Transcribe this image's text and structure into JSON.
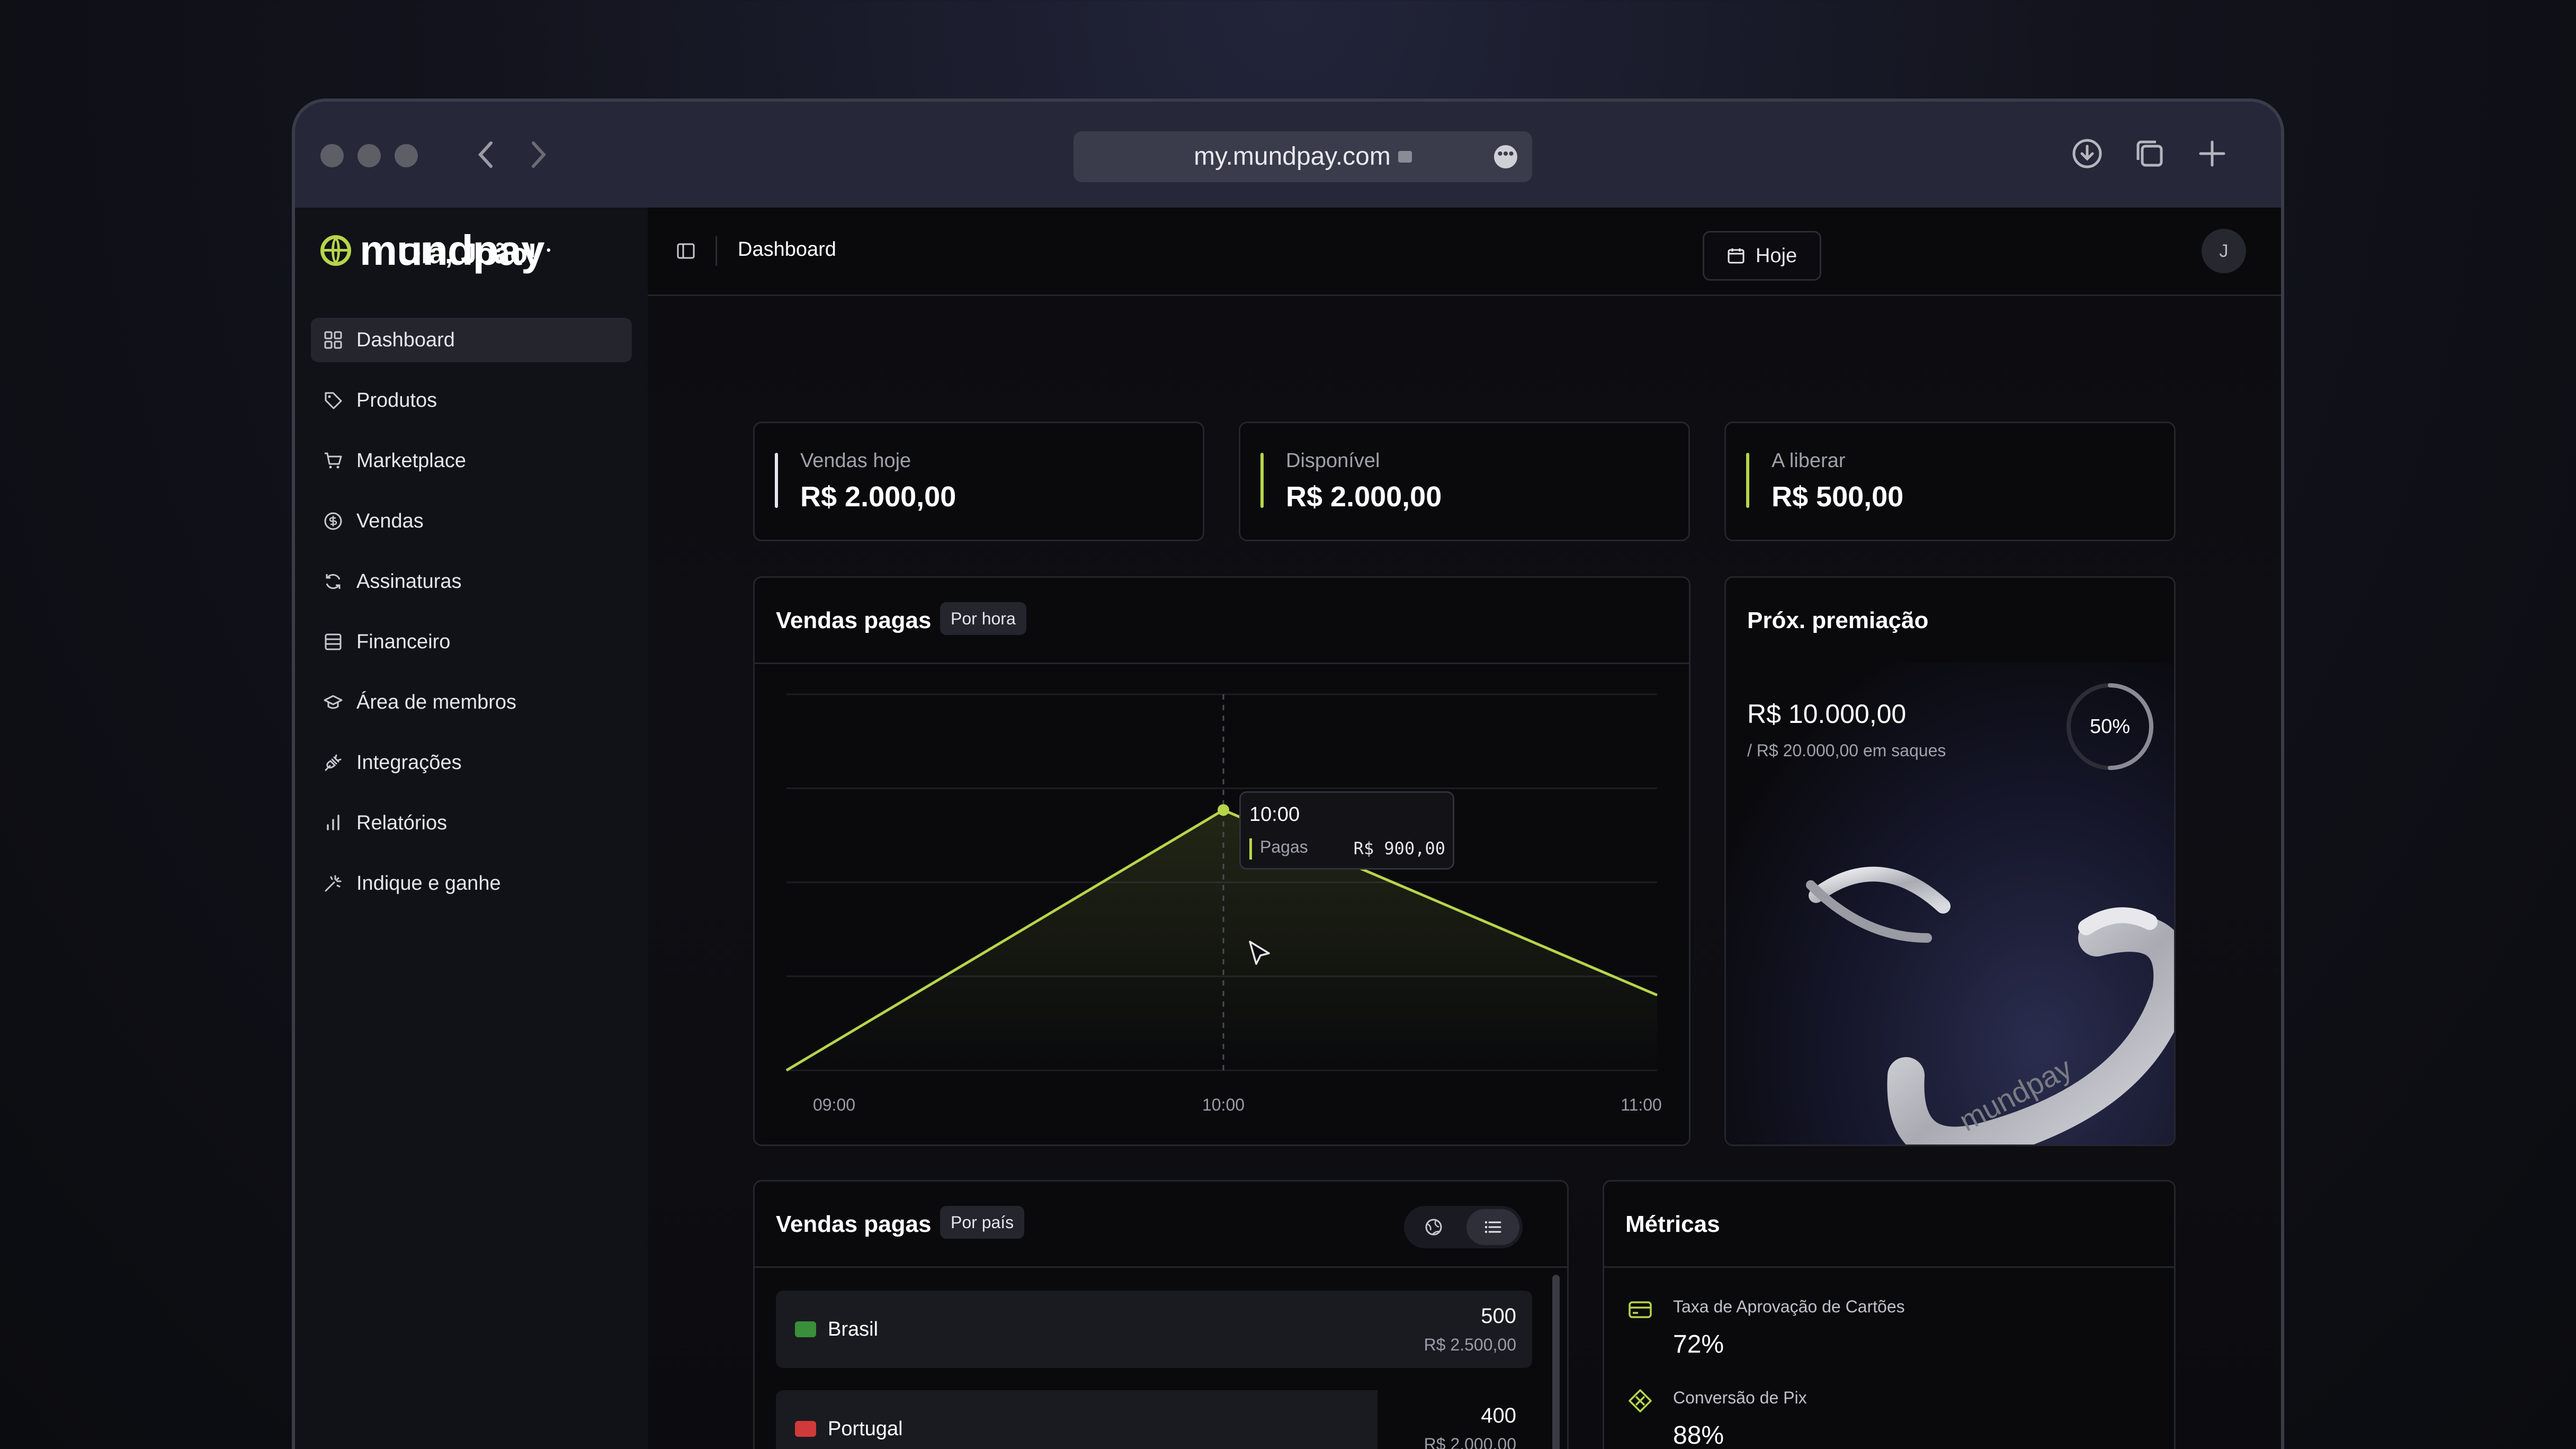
{
  "browser": {
    "url": "my.mundpay.com"
  },
  "app": {
    "logo_text": "mundpay",
    "breadcrumb": "Dashboard",
    "avatar_initial": "J"
  },
  "sidebar": {
    "items": [
      {
        "label": "Dashboard",
        "icon": "grid-icon",
        "active": true
      },
      {
        "label": "Produtos",
        "icon": "tag-icon"
      },
      {
        "label": "Marketplace",
        "icon": "cart-icon"
      },
      {
        "label": "Vendas",
        "icon": "dollar-circle-icon"
      },
      {
        "label": "Assinaturas",
        "icon": "refresh-icon"
      },
      {
        "label": "Financeiro",
        "icon": "wallet-icon"
      },
      {
        "label": "Área de membros",
        "icon": "graduation-cap-icon"
      },
      {
        "label": "Integrações",
        "icon": "plug-icon"
      },
      {
        "label": "Relatórios",
        "icon": "bar-chart-icon"
      },
      {
        "label": "Indique e ganhe",
        "icon": "sparkle-icon"
      }
    ]
  },
  "header": {
    "greeting": "Olá, João!",
    "date_button": "Hoje"
  },
  "stats": [
    {
      "label": "Vendas hoje",
      "value": "R$ 2.000,00",
      "color": "#e6e6ec"
    },
    {
      "label": "Disponível",
      "value": "R$ 2.000,00",
      "color": "#b7d54a"
    },
    {
      "label": "A liberar",
      "value": "R$ 500,00",
      "color": "#b7d54a"
    }
  ],
  "sales_chart": {
    "title": "Vendas pagas",
    "filter": "Por hora",
    "tooltip": {
      "time": "10:00",
      "series": "Pagas",
      "value": "R$ 900,00"
    }
  },
  "chart_data": {
    "type": "area",
    "x": [
      "09:00",
      "10:00",
      "11:00"
    ],
    "series": [
      {
        "name": "Pagas",
        "values": [
          0,
          900,
          260
        ]
      }
    ],
    "xlabel": "",
    "ylabel": "",
    "ylim": [
      0,
      1300
    ],
    "grid": true,
    "color": "#b7d54a"
  },
  "prize": {
    "title": "Próx. premiação",
    "amount": "R$ 10.000,00",
    "subtitle": "/ R$ 20.000,00 em saques",
    "progress_label": "50%",
    "progress": 0.5,
    "engraving": "mundpay"
  },
  "countries": {
    "title": "Vendas pagas",
    "filter": "Por país",
    "items": [
      {
        "name": "Brasil",
        "count": "500",
        "amount": "R$ 2.500,00",
        "flag_color": "#3a8f3a"
      },
      {
        "name": "Portugal",
        "count": "400",
        "amount": "R$ 2.000,00",
        "flag_color": "#d13a3a"
      }
    ]
  },
  "metrics": {
    "title": "Métricas",
    "items": [
      {
        "label": "Taxa de Aprovação de Cartões",
        "value": "72%",
        "icon": "credit-card-icon"
      },
      {
        "label": "Conversão de Pix",
        "value": "88%",
        "icon": "pix-icon"
      }
    ]
  }
}
